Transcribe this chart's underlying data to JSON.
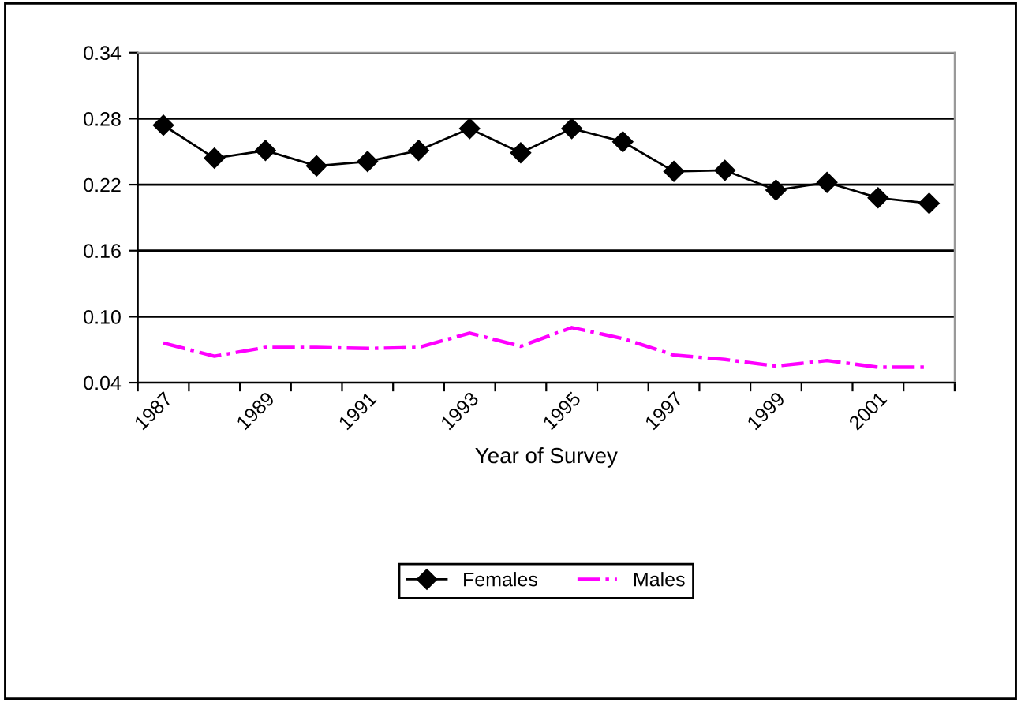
{
  "chart_data": {
    "type": "line",
    "xlabel": "Year of Survey",
    "categories": [
      "1987",
      null,
      "1989",
      null,
      "1991",
      null,
      "1993",
      null,
      "1995",
      null,
      "1997",
      null,
      "1999",
      null,
      "2001",
      null
    ],
    "series": [
      {
        "name": "Females",
        "color": "#000000",
        "marker": "diamond",
        "line_style": "solid",
        "values": [
          0.274,
          0.244,
          0.251,
          0.237,
          0.241,
          0.251,
          0.271,
          0.249,
          0.271,
          0.259,
          0.232,
          0.233,
          0.215,
          0.222,
          0.208,
          0.203
        ]
      },
      {
        "name": "Males",
        "color": "#ff00ff",
        "marker": "none",
        "line_style": "dashdot",
        "values": [
          0.076,
          0.064,
          0.072,
          0.072,
          0.071,
          0.072,
          0.085,
          0.073,
          0.09,
          0.08,
          0.065,
          0.061,
          0.055,
          0.06,
          0.054,
          0.054
        ]
      }
    ],
    "ylim": [
      0.04,
      0.34
    ],
    "yticks": [
      {
        "value": 0.04,
        "label": "0.04"
      },
      {
        "value": 0.1,
        "label": "0.10"
      },
      {
        "value": 0.16,
        "label": "0.16"
      },
      {
        "value": 0.22,
        "label": "0.22"
      },
      {
        "value": 0.28,
        "label": "0.28"
      },
      {
        "value": 0.34,
        "label": "0.34"
      }
    ],
    "grid": "y",
    "legend": "bottom"
  }
}
